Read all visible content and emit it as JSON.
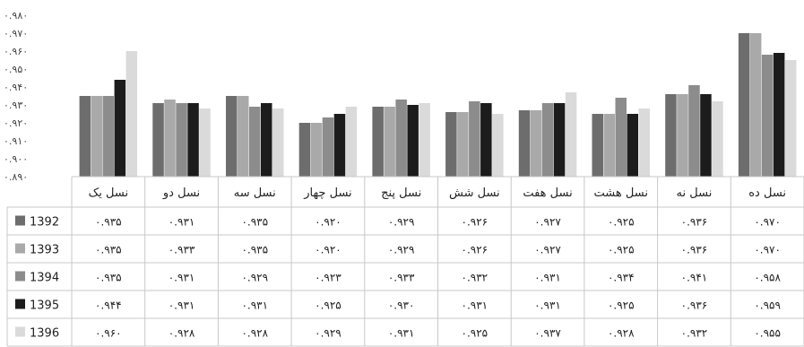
{
  "chart_data": {
    "type": "bar",
    "categories": [
      "نسل یک",
      "نسل دو",
      "نسل سه",
      "نسل چهار",
      "نسل پنج",
      "نسل شش",
      "نسل هفت",
      "نسل هشت",
      "نسل نه",
      "نسل ده"
    ],
    "series": [
      {
        "name": "1392",
        "color": "#6d6d6d",
        "values": [
          0.935,
          0.931,
          0.935,
          0.92,
          0.929,
          0.926,
          0.927,
          0.925,
          0.936,
          0.97
        ],
        "labels": [
          "۰.۹۳۵",
          "۰.۹۳۱",
          "۰.۹۳۵",
          "۰.۹۲۰",
          "۰.۹۲۹",
          "۰.۹۲۶",
          "۰.۹۲۷",
          "۰.۹۲۵",
          "۰.۹۳۶",
          "۰.۹۷۰"
        ]
      },
      {
        "name": "1393",
        "color": "#a9a9a9",
        "values": [
          0.935,
          0.933,
          0.935,
          0.92,
          0.929,
          0.926,
          0.927,
          0.925,
          0.936,
          0.97
        ],
        "labels": [
          "۰.۹۳۵",
          "۰.۹۳۳",
          "۰.۹۳۵",
          "۰.۹۲۰",
          "۰.۹۲۹",
          "۰.۹۲۶",
          "۰.۹۲۷",
          "۰.۹۲۵",
          "۰.۹۳۶",
          "۰.۹۷۰"
        ]
      },
      {
        "name": "1394",
        "color": "#8c8c8c",
        "values": [
          0.935,
          0.931,
          0.929,
          0.923,
          0.933,
          0.932,
          0.931,
          0.934,
          0.941,
          0.958
        ],
        "labels": [
          "۰.۹۳۵",
          "۰.۹۳۱",
          "۰.۹۲۹",
          "۰.۹۲۳",
          "۰.۹۳۳",
          "۰.۹۳۲",
          "۰.۹۳۱",
          "۰.۹۳۴",
          "۰.۹۴۱",
          "۰.۹۵۸"
        ]
      },
      {
        "name": "1395",
        "color": "#1c1c1c",
        "values": [
          0.944,
          0.931,
          0.931,
          0.925,
          0.93,
          0.931,
          0.931,
          0.925,
          0.936,
          0.959
        ],
        "labels": [
          "۰.۹۴۴",
          "۰.۹۳۱",
          "۰.۹۳۱",
          "۰.۹۲۵",
          "۰.۹۳۰",
          "۰.۹۳۱",
          "۰.۹۳۱",
          "۰.۹۲۵",
          "۰.۹۳۶",
          "۰.۹۵۹"
        ]
      },
      {
        "name": "1396",
        "color": "#dadada",
        "values": [
          0.96,
          0.928,
          0.928,
          0.929,
          0.931,
          0.925,
          0.937,
          0.928,
          0.932,
          0.955
        ],
        "labels": [
          "۰.۹۶۰",
          "۰.۹۲۸",
          "۰.۹۲۸",
          "۰.۹۲۹",
          "۰.۹۳۱",
          "۰.۹۲۵",
          "۰.۹۳۷",
          "۰.۹۲۸",
          "۰.۹۳۲",
          "۰.۹۵۵"
        ]
      }
    ],
    "y_ticks": [
      "۰.۸۹۰",
      "۰.۹۰۰",
      "۰.۹۱۰",
      "۰.۹۲۰",
      "۰.۹۳۰",
      "۰.۹۴۰",
      "۰.۹۵۰",
      "۰.۹۶۰",
      "۰.۹۷۰",
      "۰.۹۸۰"
    ],
    "ylim": [
      0.89,
      0.98
    ],
    "grid": false,
    "legend": "data-table-left"
  }
}
